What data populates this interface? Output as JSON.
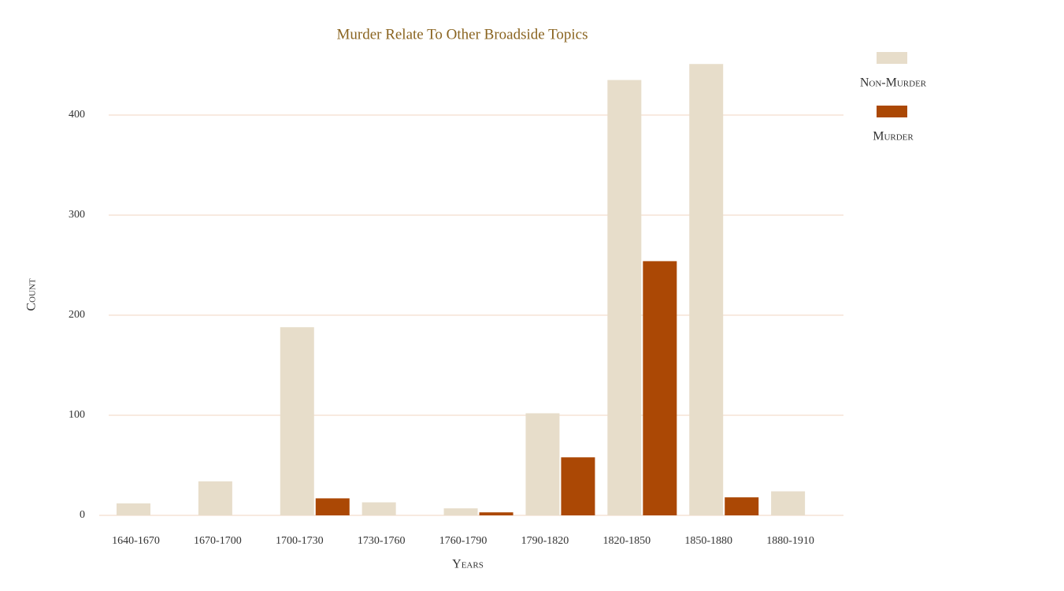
{
  "chart_data": {
    "type": "bar",
    "title": "Murder Relate To Other Broadside Topics",
    "x_label": "Years",
    "y_label": "Count",
    "categories": [
      "1640-1670",
      "1670-1700",
      "1700-1730",
      "1730-1760",
      "1760-1790",
      "1790-1820",
      "1820-1850",
      "1850-1880",
      "1880-1910"
    ],
    "series": [
      {
        "name": "Non-Murder",
        "color": "#e7ddca",
        "values": [
          12,
          34,
          188,
          13,
          7,
          102,
          435,
          451,
          24
        ]
      },
      {
        "name": "Murder",
        "color": "#ab4805",
        "values": [
          0,
          0,
          17,
          0,
          3,
          58,
          254,
          18,
          0
        ]
      }
    ],
    "ylim": [
      0,
      460
    ],
    "yticks": [
      0,
      100,
      200,
      300,
      400
    ],
    "grid": true,
    "legend": "right"
  }
}
